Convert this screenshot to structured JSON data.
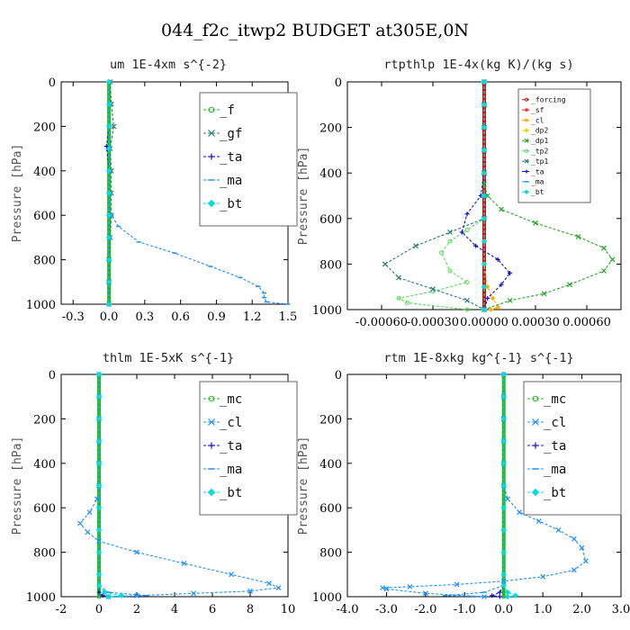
{
  "title": "044_f2c_itwp2  BUDGET at305E,0N",
  "chart_data": [
    {
      "type": "line",
      "title": "um  1E-4xm s^{-2}",
      "ylabel": "Pressure [hPa]",
      "xlim": [
        -0.4,
        1.5
      ],
      "ylim": [
        1000,
        0
      ],
      "xticks": [
        -0.3,
        0.0,
        0.3,
        0.6,
        0.9,
        1.2,
        1.5
      ],
      "xtick_labels": [
        "-0.3",
        "0.0",
        "0.3",
        "0.6",
        "0.9",
        "1.2",
        "1.5"
      ],
      "yticks": [
        0,
        200,
        400,
        600,
        800,
        1000
      ],
      "legend_position": "top-right",
      "series": [
        {
          "name": "_f",
          "color": "#22bb22",
          "marker": "circle",
          "x": [
            0,
            0,
            0,
            0,
            0,
            0,
            0,
            0,
            0,
            0,
            0
          ],
          "y": [
            0,
            100,
            200,
            300,
            400,
            500,
            600,
            700,
            800,
            900,
            1000
          ]
        },
        {
          "name": "_gf",
          "color": "#2a7a7a",
          "marker": "cross",
          "x": [
            0.01,
            0.02,
            0.04,
            0.01,
            0.02,
            0.02,
            0.02,
            0.01,
            0,
            0,
            0
          ],
          "y": [
            0,
            100,
            200,
            300,
            400,
            500,
            600,
            700,
            800,
            900,
            1000
          ]
        },
        {
          "name": "_ta",
          "color": "#1010cc",
          "marker": "plus",
          "x": [
            0,
            0,
            0,
            -0.02,
            0,
            0,
            0,
            0,
            0,
            0,
            0
          ],
          "y": [
            0,
            100,
            200,
            290,
            400,
            500,
            600,
            700,
            800,
            900,
            1000
          ]
        },
        {
          "name": "_ma",
          "color": "#1e90ff",
          "marker": "dash",
          "x": [
            0,
            0,
            0,
            0,
            0,
            0,
            0.02,
            0.08,
            0.25,
            0.55,
            0.85,
            1.1,
            1.25,
            1.3,
            1.3,
            1.32,
            1.5
          ],
          "y": [
            0,
            100,
            200,
            300,
            400,
            500,
            600,
            650,
            720,
            770,
            830,
            880,
            920,
            950,
            970,
            990,
            1000
          ]
        },
        {
          "name": "_bt",
          "color": "#00dddd",
          "marker": "diamond",
          "x": [
            0,
            0,
            0,
            0,
            0,
            0,
            0,
            0,
            0,
            0,
            0
          ],
          "y": [
            0,
            100,
            200,
            300,
            400,
            500,
            600,
            700,
            800,
            900,
            1000
          ]
        }
      ]
    },
    {
      "type": "line",
      "title": "rtpthlp  1E-4x(kg K)/(kg s)",
      "ylabel": "Pressure [hPa]",
      "xlim": [
        -0.0008,
        0.0008
      ],
      "ylim": [
        1000,
        0
      ],
      "xticks": [
        -0.0006,
        -0.0003,
        0.0,
        0.0003,
        0.0006
      ],
      "xtick_labels": [
        "-0.00060",
        "-0.00030",
        "0.00000",
        "0.00030",
        "0.00060"
      ],
      "yticks": [
        0,
        200,
        400,
        600,
        800,
        1000
      ],
      "legend_position": "top-right",
      "series": [
        {
          "name": "_forcing",
          "color": "#cc1111",
          "marker": "circle",
          "x": [
            0,
            0,
            0,
            0,
            0,
            0,
            0,
            0,
            0,
            0,
            0
          ],
          "y": [
            0,
            100,
            200,
            300,
            400,
            500,
            600,
            700,
            800,
            900,
            1000
          ]
        },
        {
          "name": "_sf",
          "color": "#ff2222",
          "marker": "star",
          "x": [
            0,
            0,
            0,
            0,
            0,
            0,
            0,
            0,
            0,
            0,
            0
          ],
          "y": [
            0,
            100,
            200,
            300,
            400,
            500,
            600,
            700,
            800,
            900,
            1000
          ]
        },
        {
          "name": "_cl",
          "color": "#ffaa00",
          "marker": "star",
          "x": [
            0,
            0,
            0,
            0,
            0,
            0,
            0,
            0,
            0,
            2e-05,
            5e-05,
            8e-05,
            4e-05
          ],
          "y": [
            0,
            100,
            200,
            300,
            400,
            500,
            600,
            700,
            800,
            900,
            950,
            990,
            1000
          ]
        },
        {
          "name": "_dp2",
          "color": "#dddd00",
          "marker": "diamond",
          "x": [
            0,
            0,
            0,
            0,
            0,
            0,
            0,
            0,
            0,
            0,
            0
          ],
          "y": [
            0,
            100,
            200,
            300,
            400,
            500,
            600,
            700,
            800,
            900,
            1000
          ]
        },
        {
          "name": "_dp1",
          "color": "#22aa22",
          "marker": "cross",
          "x": [
            0,
            0,
            0,
            0,
            0,
            0,
            2e-05,
            0.0001,
            0.0003,
            0.00055,
            0.0007,
            0.00075,
            0.0007,
            0.0005,
            0.00035,
            0.00015,
            0
          ],
          "y": [
            0,
            100,
            200,
            300,
            400,
            450,
            500,
            560,
            620,
            680,
            730,
            780,
            830,
            890,
            930,
            960,
            1000
          ]
        },
        {
          "name": "_tp2",
          "color": "#55dd55",
          "marker": "circle",
          "x": [
            0,
            0,
            0,
            0,
            0,
            0,
            0,
            -0.0001,
            -0.0002,
            -0.00025,
            -0.0002,
            -0.0001,
            -0.0003,
            -0.0005,
            -0.00045,
            -0.0001
          ],
          "y": [
            0,
            100,
            200,
            300,
            400,
            500,
            600,
            650,
            700,
            750,
            830,
            880,
            920,
            950,
            970,
            1000
          ]
        },
        {
          "name": "_tp1",
          "color": "#2a7a7a",
          "marker": "cross",
          "x": [
            0,
            0,
            0,
            0,
            0,
            0,
            0,
            -0.0002,
            -0.0004,
            -0.00058,
            -0.0005,
            -0.0003,
            -0.0001,
            0
          ],
          "y": [
            0,
            100,
            200,
            300,
            400,
            500,
            600,
            660,
            720,
            800,
            860,
            910,
            960,
            1000
          ]
        },
        {
          "name": "_ta",
          "color": "#1010cc",
          "marker": "plus",
          "x": [
            0,
            0,
            0,
            0,
            0,
            -2e-05,
            -0.0001,
            -0.00013,
            -5e-05,
            8e-05,
            0.00015,
            0.0001,
            2e-05,
            0
          ],
          "y": [
            0,
            100,
            200,
            300,
            400,
            500,
            580,
            660,
            720,
            780,
            840,
            890,
            950,
            1000
          ]
        },
        {
          "name": "_ma",
          "color": "#1e90ff",
          "marker": "dash",
          "x": [
            0,
            0,
            0,
            0,
            0,
            0,
            0,
            0,
            0,
            0,
            0
          ],
          "y": [
            0,
            100,
            200,
            300,
            400,
            500,
            600,
            700,
            800,
            900,
            1000
          ]
        },
        {
          "name": "_bt",
          "color": "#00dddd",
          "marker": "diamond",
          "x": [
            0,
            0,
            0,
            0,
            0,
            0,
            0,
            0,
            0,
            0,
            0
          ],
          "y": [
            0,
            100,
            200,
            300,
            400,
            500,
            600,
            700,
            800,
            900,
            1000
          ]
        }
      ]
    },
    {
      "type": "line",
      "title": "thlm  1E-5xK s^{-1}",
      "ylabel": "Pressure [hPa]",
      "xlim": [
        -2,
        10
      ],
      "ylim": [
        1000,
        0
      ],
      "xticks": [
        -2,
        0,
        2,
        4,
        6,
        8,
        10
      ],
      "xtick_labels": [
        "-2",
        "0",
        "2",
        "4",
        "6",
        "8",
        "10"
      ],
      "yticks": [
        0,
        200,
        400,
        600,
        800,
        1000
      ],
      "legend_position": "top-right",
      "series": [
        {
          "name": "_mc",
          "color": "#22bb22",
          "marker": "circle",
          "x": [
            0,
            0,
            0,
            0,
            0,
            0,
            0,
            0,
            0,
            0,
            0
          ],
          "y": [
            0,
            100,
            200,
            300,
            400,
            500,
            600,
            700,
            800,
            900,
            1000
          ]
        },
        {
          "name": "_cl",
          "color": "#1e90ff",
          "marker": "cross",
          "x": [
            0,
            0,
            0,
            0,
            0,
            0,
            -0.1,
            -0.5,
            -1.0,
            -0.6,
            0,
            2,
            4.5,
            7,
            9,
            9.5,
            8,
            5,
            2,
            0.5
          ],
          "y": [
            0,
            100,
            200,
            300,
            400,
            500,
            560,
            620,
            670,
            710,
            750,
            800,
            850,
            900,
            940,
            960,
            975,
            985,
            995,
            1000
          ]
        },
        {
          "name": "_ta",
          "color": "#1010cc",
          "marker": "plus",
          "x": [
            0,
            0,
            0,
            0,
            0,
            0,
            0,
            0,
            0,
            0,
            0,
            0,
            0.2,
            0.5
          ],
          "y": [
            0,
            100,
            200,
            300,
            400,
            500,
            600,
            700,
            800,
            900,
            950,
            980,
            995,
            1000
          ]
        },
        {
          "name": "_ma",
          "color": "#1e90ff",
          "marker": "dash",
          "x": [
            0,
            0,
            0,
            0,
            0,
            0,
            0,
            0,
            0,
            0,
            0,
            0.5,
            2.5,
            1
          ],
          "y": [
            0,
            100,
            200,
            300,
            400,
            500,
            600,
            700,
            800,
            900,
            950,
            980,
            995,
            1000
          ]
        },
        {
          "name": "_bt",
          "color": "#00dddd",
          "marker": "diamond",
          "x": [
            0,
            0,
            0,
            0,
            0,
            0,
            0,
            0,
            0,
            0,
            0,
            0.3,
            1.2,
            0.5
          ],
          "y": [
            0,
            100,
            200,
            300,
            400,
            500,
            600,
            700,
            800,
            900,
            950,
            980,
            995,
            1000
          ]
        }
      ]
    },
    {
      "type": "line",
      "title": "rtm  1E-8xkg kg^{-1} s^{-1}",
      "ylabel": "Pressure [hPa]",
      "xlim": [
        -4.0,
        3.0
      ],
      "ylim": [
        1000,
        0
      ],
      "xticks": [
        -4.0,
        -3.0,
        -2.0,
        -1.0,
        0.0,
        1.0,
        2.0,
        3.0
      ],
      "xtick_labels": [
        "-4.0",
        "-3.0",
        "-2.0",
        "-1.0",
        "0.0",
        "1.0",
        "2.0",
        "3.0"
      ],
      "yticks": [
        0,
        200,
        400,
        600,
        800,
        1000
      ],
      "legend_position": "top-right",
      "series": [
        {
          "name": "_mc",
          "color": "#22bb22",
          "marker": "circle",
          "x": [
            0,
            0,
            0,
            0,
            0,
            0,
            0,
            0,
            0,
            0,
            0
          ],
          "y": [
            0,
            100,
            200,
            300,
            400,
            500,
            600,
            700,
            800,
            900,
            1000
          ]
        },
        {
          "name": "_cl",
          "color": "#1e90ff",
          "marker": "cross",
          "x": [
            0,
            0,
            0,
            0,
            0,
            0,
            0.1,
            0.4,
            0.9,
            1.4,
            1.8,
            2.0,
            2.1,
            1.8,
            1.0,
            0,
            -1.2,
            -2.4,
            -3.1,
            -3.0,
            -2.0,
            -0.5
          ],
          "y": [
            0,
            100,
            200,
            300,
            400,
            500,
            560,
            620,
            660,
            700,
            740,
            780,
            840,
            880,
            910,
            930,
            945,
            955,
            960,
            965,
            985,
            1000
          ]
        },
        {
          "name": "_ta",
          "color": "#1010cc",
          "marker": "plus",
          "x": [
            0,
            0,
            0,
            0,
            0,
            0,
            0,
            0,
            0,
            0,
            0,
            -0.1,
            -0.3,
            -0.1
          ],
          "y": [
            0,
            100,
            200,
            300,
            400,
            500,
            600,
            700,
            800,
            900,
            950,
            980,
            995,
            1000
          ]
        },
        {
          "name": "_ma",
          "color": "#1e90ff",
          "marker": "dash",
          "x": [
            0,
            0,
            0,
            0,
            0,
            0,
            0,
            0,
            0,
            0,
            0,
            -0.5,
            -1.5,
            -0.5
          ],
          "y": [
            0,
            100,
            200,
            300,
            400,
            500,
            600,
            700,
            800,
            900,
            950,
            980,
            995,
            1000
          ]
        },
        {
          "name": "_bt",
          "color": "#00dddd",
          "marker": "diamond",
          "x": [
            0,
            0,
            0,
            0,
            0,
            0,
            0,
            0,
            0,
            0,
            0,
            0.1,
            0.3,
            0.1
          ],
          "y": [
            0,
            100,
            200,
            300,
            400,
            500,
            600,
            700,
            800,
            900,
            950,
            980,
            995,
            1000
          ]
        }
      ]
    }
  ]
}
